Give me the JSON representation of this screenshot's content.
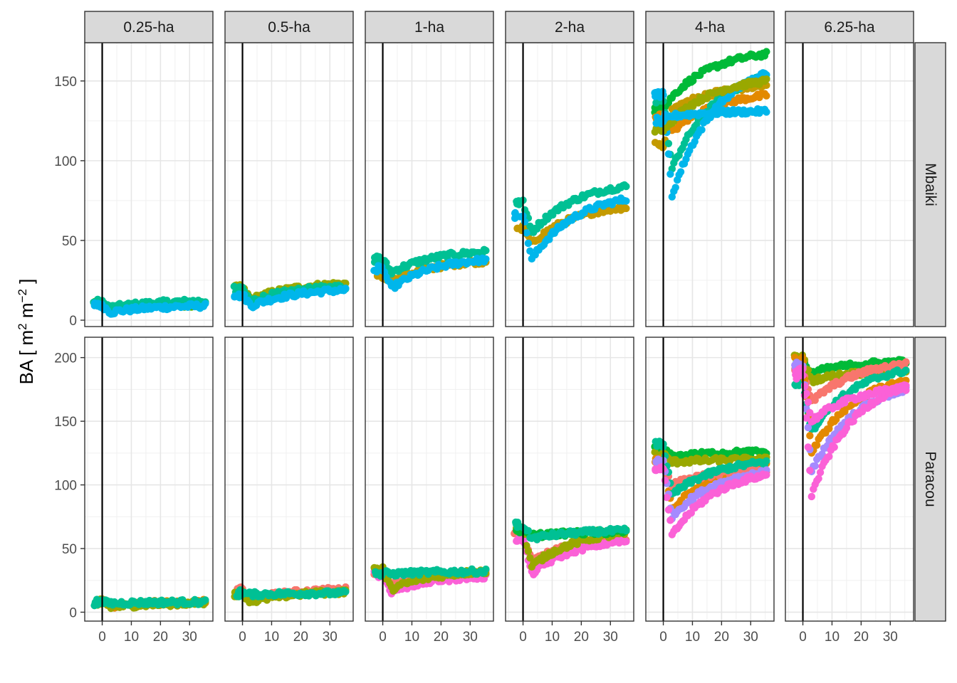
{
  "chart_data": {
    "type": "scatter",
    "title": "",
    "xlabel": "",
    "ylabel": "BA [ m² m⁻² ]",
    "ylabel_parts": {
      "main": "BA [ m",
      "sup1": "2",
      "mid": " m",
      "sup2": "−2",
      "end": " ]"
    },
    "col_facets": [
      "0.25-ha",
      "0.5-ha",
      "1-ha",
      "2-ha",
      "4-ha",
      "6.25-ha"
    ],
    "row_facets": [
      "Mbaiki",
      "Paracou"
    ],
    "x_ticks": [
      0,
      10,
      20,
      30
    ],
    "xlim": [
      -6,
      38
    ],
    "vline_x": 0,
    "rows": [
      {
        "name": "Mbaiki",
        "y_ticks": [
          0,
          50,
          100,
          150
        ],
        "ylim": [
          -4,
          174
        ]
      },
      {
        "name": "Paracou",
        "y_ticks": [
          0,
          50,
          100,
          150,
          200
        ],
        "ylim": [
          -7,
          216
        ]
      }
    ],
    "colors": [
      "#F8766D",
      "#C49A00",
      "#53B400",
      "#00C094",
      "#00B6EB",
      "#A58AFF",
      "#FB61D7",
      "#E38900",
      "#00BA38",
      "#99A800"
    ],
    "series_by_panel": {
      "Mbaiki|0.25-ha": [
        {
          "color": "#53B400",
          "pre": 10,
          "dip": 7,
          "end": 10
        },
        {
          "color": "#00C094",
          "pre": 11,
          "dip": 8,
          "end": 12
        },
        {
          "color": "#00B6EB",
          "pre": 9,
          "dip": 5,
          "end": 9
        }
      ],
      "Mbaiki|0.5-ha": [
        {
          "color": "#99A800",
          "pre": 20,
          "dip": 13,
          "end": 23
        },
        {
          "color": "#00C094",
          "pre": 19,
          "dip": 12,
          "end": 21
        },
        {
          "color": "#00B6EB",
          "pre": 16,
          "dip": 9,
          "end": 19
        }
      ],
      "Mbaiki|1-ha": [
        {
          "color": "#C49A00",
          "pre": 28,
          "dip": 24,
          "end": 37
        },
        {
          "color": "#00C094",
          "pre": 38,
          "dip": 30,
          "end": 43
        },
        {
          "color": "#00B6EB",
          "pre": 32,
          "dip": 20,
          "end": 38
        }
      ],
      "Mbaiki|2-ha": [
        {
          "color": "#C49A00",
          "pre": 58,
          "dip": 48,
          "end": 71
        },
        {
          "color": "#00C094",
          "pre": 74,
          "dip": 55,
          "end": 84
        },
        {
          "color": "#00B6EB",
          "pre": 66,
          "dip": 38,
          "end": 76
        }
      ],
      "Mbaiki|4-ha": [
        {
          "color": "#00BA38",
          "pre": 132,
          "dip": 140,
          "end": 167
        },
        {
          "color": "#C49A00",
          "pre": 110,
          "dip": 132,
          "end": 147
        },
        {
          "color": "#E38900",
          "pre": 128,
          "dip": 118,
          "end": 141
        },
        {
          "color": "#00C094",
          "pre": 138,
          "dip": 95,
          "end": 153
        },
        {
          "color": "#00B6EB",
          "pre": 142,
          "dip": 78,
          "end": 155
        },
        {
          "color": "#99A800",
          "pre": 120,
          "dip": 125,
          "end": 150
        },
        {
          "color": "#00B6EB",
          "pre": 125,
          "dip": 128,
          "end": 131
        }
      ],
      "Mbaiki|6.25-ha": [],
      "Paracou|0.25-ha": [
        {
          "color": "#E38900",
          "pre": 9,
          "dip": 5,
          "end": 8
        },
        {
          "color": "#99A800",
          "pre": 8,
          "dip": 4,
          "end": 7
        },
        {
          "color": "#00C094",
          "pre": 8,
          "dip": 7,
          "end": 8
        }
      ],
      "Paracou|0.5-ha": [
        {
          "color": "#F8766D",
          "pre": 17,
          "dip": 10,
          "end": 18
        },
        {
          "color": "#99A800",
          "pre": 15,
          "dip": 8,
          "end": 16
        },
        {
          "color": "#00C094",
          "pre": 15,
          "dip": 14,
          "end": 15
        }
      ],
      "Paracou|1-ha": [
        {
          "color": "#F8766D",
          "pre": 32,
          "dip": 22,
          "end": 31
        },
        {
          "color": "#FB61D7",
          "pre": 30,
          "dip": 16,
          "end": 28
        },
        {
          "color": "#99A800",
          "pre": 34,
          "dip": 18,
          "end": 32
        },
        {
          "color": "#00C094",
          "pre": 31,
          "dip": 30,
          "end": 32
        }
      ],
      "Paracou|2-ha": [
        {
          "color": "#F8766D",
          "pre": 62,
          "dip": 40,
          "end": 58
        },
        {
          "color": "#FB61D7",
          "pre": 58,
          "dip": 30,
          "end": 56
        },
        {
          "color": "#99A800",
          "pre": 66,
          "dip": 36,
          "end": 62
        },
        {
          "color": "#00BA38",
          "pre": 65,
          "dip": 60,
          "end": 63
        },
        {
          "color": "#00C094",
          "pre": 68,
          "dip": 58,
          "end": 64
        }
      ],
      "Paracou|4-ha": [
        {
          "color": "#00BA38",
          "pre": 128,
          "dip": 122,
          "end": 126
        },
        {
          "color": "#99A800",
          "pre": 124,
          "dip": 118,
          "end": 120
        },
        {
          "color": "#E38900",
          "pre": 120,
          "dip": 80,
          "end": 116
        },
        {
          "color": "#F8766D",
          "pre": 116,
          "dip": 100,
          "end": 112
        },
        {
          "color": "#00C094",
          "pre": 132,
          "dip": 92,
          "end": 118
        },
        {
          "color": "#A58AFF",
          "pre": 118,
          "dip": 75,
          "end": 110
        },
        {
          "color": "#FB61D7",
          "pre": 112,
          "dip": 60,
          "end": 108
        }
      ],
      "Paracou|6.25-ha": [
        {
          "color": "#00BA38",
          "pre": 196,
          "dip": 188,
          "end": 197
        },
        {
          "color": "#99A800",
          "pre": 200,
          "dip": 182,
          "end": 190
        },
        {
          "color": "#F8766D",
          "pre": 192,
          "dip": 165,
          "end": 195
        },
        {
          "color": "#00C094",
          "pre": 180,
          "dip": 142,
          "end": 190
        },
        {
          "color": "#E38900",
          "pre": 198,
          "dip": 125,
          "end": 182
        },
        {
          "color": "#A58AFF",
          "pre": 194,
          "dip": 110,
          "end": 175
        },
        {
          "color": "#FB61D7",
          "pre": 190,
          "dip": 92,
          "end": 178
        },
        {
          "color": "#FB61D7",
          "pre": 186,
          "dip": 150,
          "end": 176
        }
      ]
    }
  }
}
